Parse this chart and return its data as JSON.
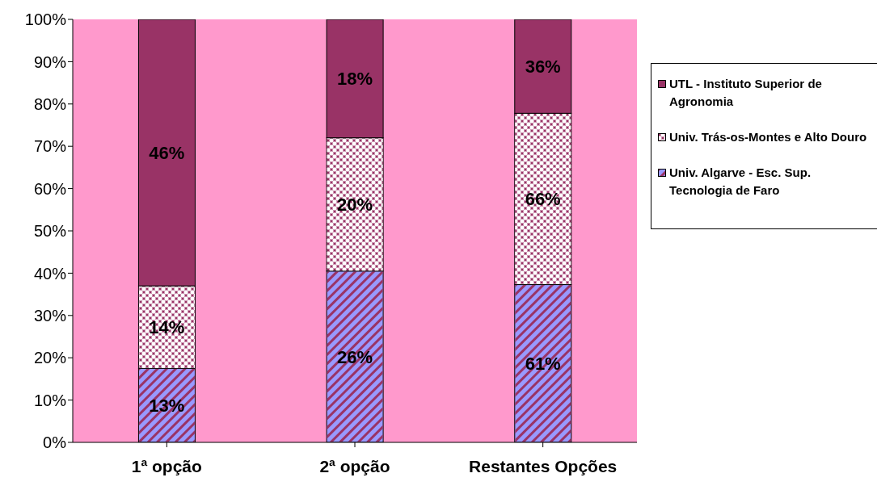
{
  "chart_data": {
    "type": "bar",
    "stacked": true,
    "categories": [
      "1ª opção",
      "2ª opção",
      "Restantes Opções"
    ],
    "series": [
      {
        "name": "Univ. Algarve - Esc. Sup. Tecnologia de Faro",
        "color": "#9999ff",
        "values": [
          17.5,
          40.5,
          37.3
        ]
      },
      {
        "name": "Univ. Trás-os-Montes e Alto Douro",
        "color": "#cc99b3",
        "values": [
          19.5,
          31.5,
          40.5
        ]
      },
      {
        "name": "UTL - Instituto Superior de Agronomia",
        "color": "#993366",
        "values": [
          63,
          28,
          22.2
        ]
      }
    ],
    "annotations": [
      "13%",
      "14%",
      "46%",
      "26%",
      "20%",
      "18%",
      "61%",
      "66%",
      "36%"
    ],
    "ylim": [
      0,
      100
    ],
    "yticks": [
      {
        "value": 0,
        "label": "0%"
      },
      {
        "value": 10,
        "label": "10%"
      },
      {
        "value": 20,
        "label": "20%"
      },
      {
        "value": 30,
        "label": "30%"
      },
      {
        "value": 40,
        "label": "40%"
      },
      {
        "value": 50,
        "label": "50%"
      },
      {
        "value": 60,
        "label": "60%"
      },
      {
        "value": 70,
        "label": "70%"
      },
      {
        "value": 80,
        "label": "80%"
      },
      {
        "value": 90,
        "label": "90%"
      },
      {
        "value": 100,
        "label": "100%"
      }
    ],
    "legend": "right"
  }
}
